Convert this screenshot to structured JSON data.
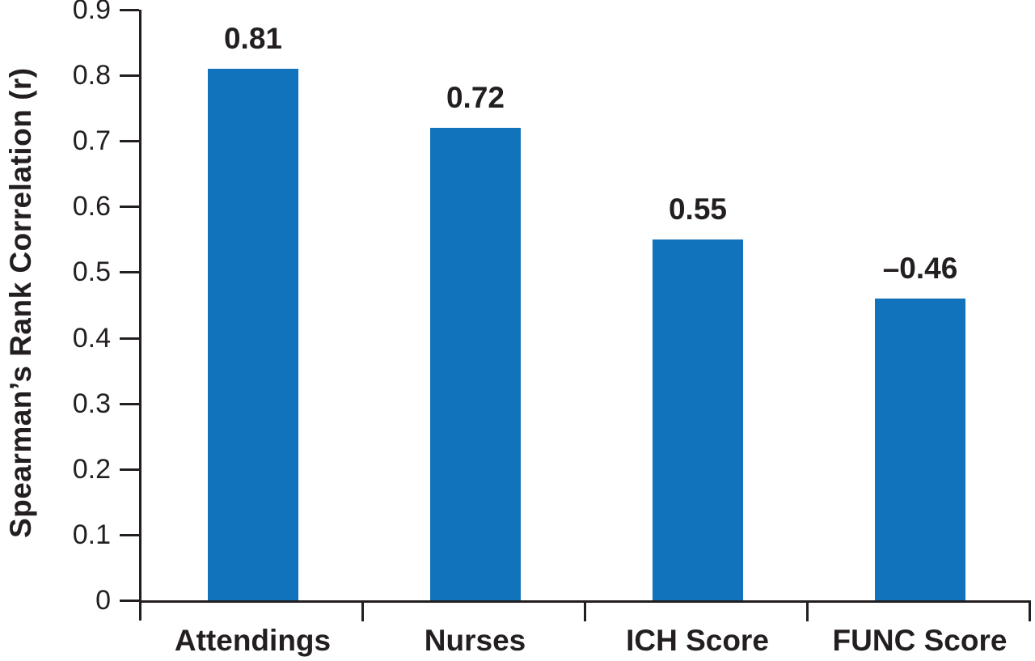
{
  "chart_data": {
    "type": "bar",
    "title": "",
    "xlabel": "",
    "ylabel": "Spearman’s Rank Correlation (r)",
    "categories": [
      "Attendings",
      "Nurses",
      "ICH Score",
      "FUNC Score"
    ],
    "values": [
      0.81,
      0.72,
      0.55,
      -0.46
    ],
    "value_labels": [
      "0.81",
      "0.72",
      "0.55",
      "–0.46"
    ],
    "bar_display_heights": [
      0.81,
      0.72,
      0.55,
      0.46
    ],
    "ylim": [
      0,
      0.9
    ],
    "ytick_step": 0.1,
    "ytick_labels": [
      "0",
      "0.1",
      "0.2",
      "0.3",
      "0.4",
      "0.5",
      "0.6",
      "0.7",
      "0.8",
      "0.9"
    ],
    "grid": false,
    "legend_position": "none",
    "bar_color": "#1273bd",
    "axis_color": "#231f20",
    "text_color": "#231f20"
  }
}
